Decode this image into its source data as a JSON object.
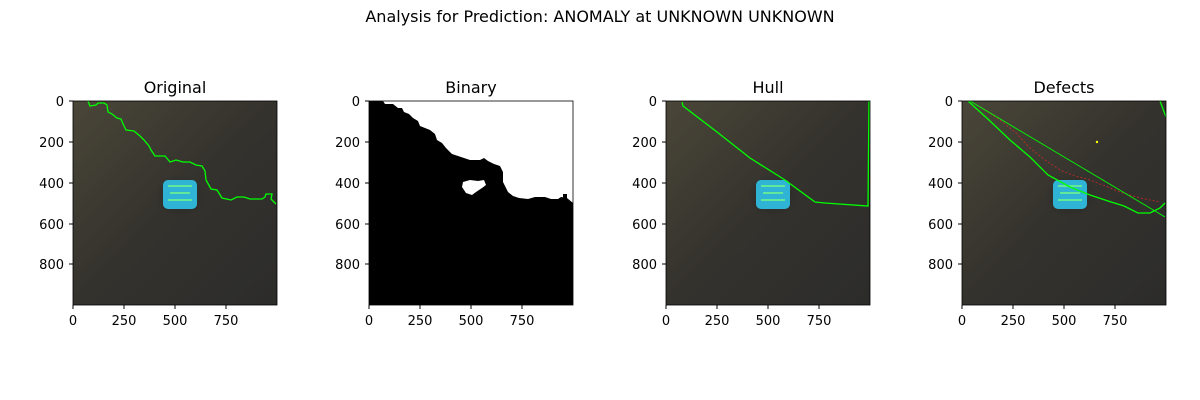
{
  "figure": {
    "title": "Analysis for Prediction: ANOMALY at UNKNOWN UNKNOWN"
  },
  "panels": [
    {
      "title": "Original",
      "kind": "image",
      "x_ticks": [
        "0",
        "250",
        "500",
        "750"
      ],
      "y_ticks": [
        "0",
        "200",
        "400",
        "600",
        "800"
      ]
    },
    {
      "title": "Binary",
      "kind": "binary-mask",
      "x_ticks": [
        "0",
        "250",
        "500",
        "750"
      ],
      "y_ticks": [
        "0",
        "200",
        "400",
        "600",
        "800"
      ]
    },
    {
      "title": "Hull",
      "kind": "image",
      "x_ticks": [
        "0",
        "250",
        "500",
        "750"
      ],
      "y_ticks": [
        "0",
        "200",
        "400",
        "600",
        "800"
      ]
    },
    {
      "title": "Defects",
      "kind": "image",
      "x_ticks": [
        "0",
        "250",
        "500",
        "750"
      ],
      "y_ticks": [
        "0",
        "200",
        "400",
        "600",
        "800"
      ]
    }
  ],
  "axes": {
    "xlim": [
      0,
      1000
    ],
    "ylim": [
      1000,
      0
    ]
  },
  "colors": {
    "background_dark": "#36342e",
    "contour": "#00ff00",
    "object": "#2fb4d6",
    "defect_lines": "#c0282a",
    "mask_white": "#ffffff",
    "mask_black": "#000000"
  }
}
